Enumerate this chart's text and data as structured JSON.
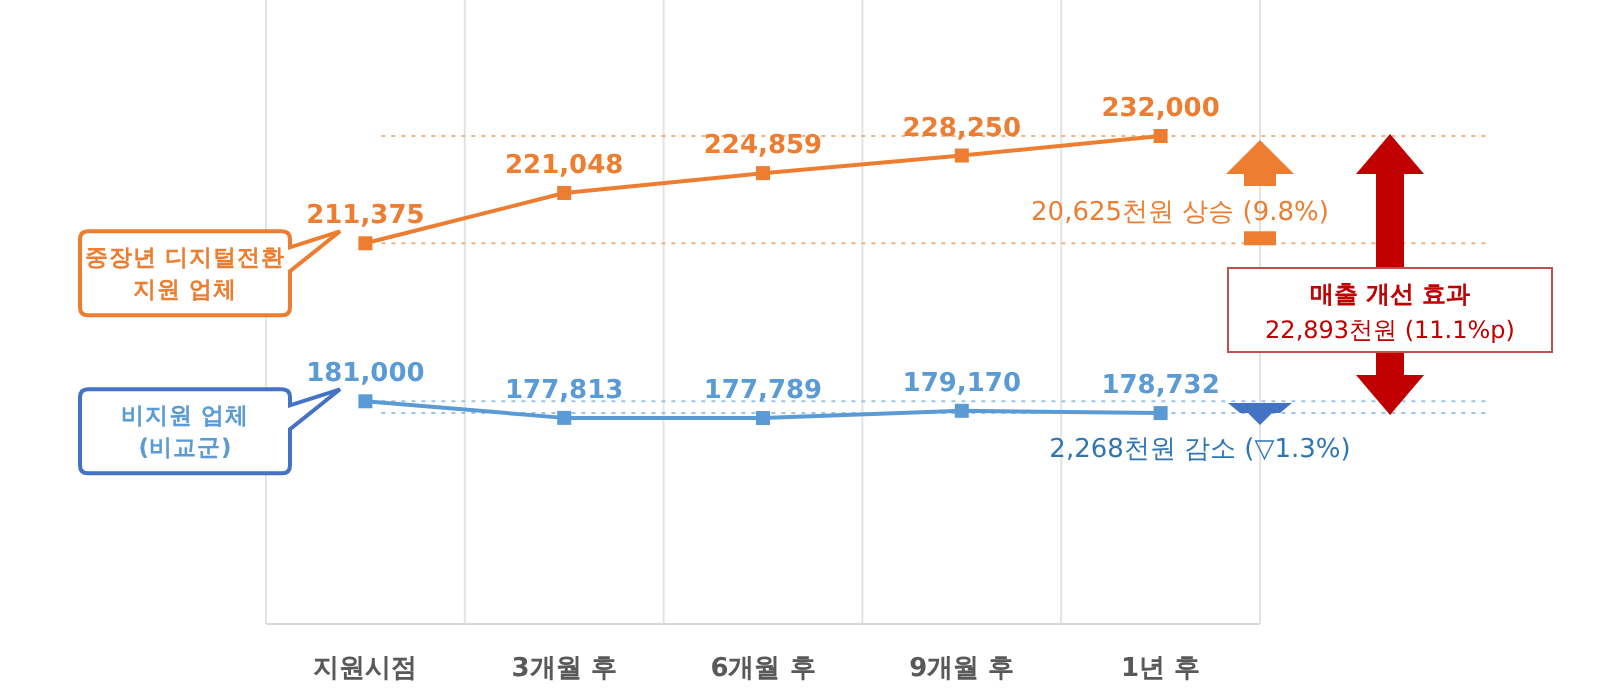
{
  "chart_data": {
    "type": "line",
    "categories": [
      "지원시점",
      "3개월 후",
      "6개월 후",
      "9개월 후",
      "1년 후"
    ],
    "series": [
      {
        "name": "중장년 디지털전환 지원 업체",
        "color": "#ed7d31",
        "values": [
          211375,
          221048,
          224859,
          228250,
          232000
        ],
        "value_labels": [
          "211,375",
          "221,048",
          "224,859",
          "228,250",
          "232,000"
        ]
      },
      {
        "name": "비지원 업체 (비교군)",
        "color": "#5b9bd5",
        "values": [
          181000,
          177813,
          177789,
          179170,
          178732
        ],
        "value_labels": [
          "181,000",
          "177,813",
          "177,789",
          "179,170",
          "178,732"
        ]
      }
    ],
    "marker": "square",
    "grid": "x",
    "legend": "left",
    "ref_lines": [
      {
        "axis": "y",
        "value": 211375,
        "color": "#f4b183",
        "line_style": "dotted"
      },
      {
        "axis": "y",
        "value": 232000,
        "color": "#f4b183",
        "line_style": "dotted"
      },
      {
        "axis": "y",
        "value": 181000,
        "color": "#9dc3e6",
        "line_style": "dotted"
      },
      {
        "axis": "y",
        "value": 178732,
        "color": "#9dc3e6",
        "line_style": "dotted"
      }
    ],
    "annotations": [
      "20,625천원 상승 (9.8%)",
      "2,268천원 감소 (▽1.3%)",
      "매출 개선 효과 22,893천원 (11.1%p)"
    ]
  }
}
